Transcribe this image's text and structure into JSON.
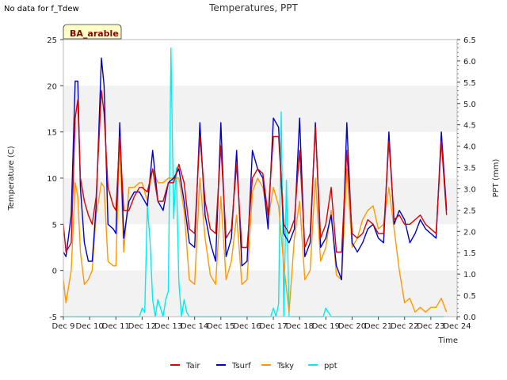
{
  "header": {
    "no_data_note": "No data for f_Tdew",
    "title": "Temperatures, PPT"
  },
  "chart_data": {
    "type": "line",
    "title": "Temperatures, PPT",
    "xlabel": "Time",
    "ylabel": "Temperature (C)",
    "y2label": "PPT (mm)",
    "site_label": "BA_arable",
    "ylim": [
      -5,
      25
    ],
    "y2lim": [
      0.0,
      6.5
    ],
    "xlim": [
      9,
      24
    ],
    "x_ticks": [
      "Dec 9",
      "Dec 10",
      "Dec 11",
      "Dec 12",
      "Dec 13",
      "Dec 14",
      "Dec 15",
      "Dec 16",
      "Dec 17",
      "Dec 18",
      "Dec 19",
      "Dec 20",
      "Dec 21",
      "Dec 22",
      "Dec 23",
      "Dec 24"
    ],
    "y_ticks": [
      -5,
      0,
      5,
      10,
      15,
      20,
      25
    ],
    "y2_ticks": [
      "0.0",
      "0.5",
      "1.0",
      "1.5",
      "2.0",
      "2.5",
      "3.0",
      "3.5",
      "4.0",
      "4.5",
      "5.0",
      "5.5",
      "6.0",
      "6.5"
    ],
    "grid_bands": true,
    "legend_position": "bottom",
    "series": [
      {
        "name": "Tair",
        "color": "#dd0000",
        "x": [
          9.0,
          9.1,
          9.3,
          9.45,
          9.55,
          9.65,
          9.8,
          9.95,
          10.1,
          10.25,
          10.45,
          10.55,
          10.7,
          10.9,
          11.0,
          11.15,
          11.3,
          11.5,
          11.7,
          11.9,
          12.0,
          12.2,
          12.4,
          12.6,
          12.8,
          13.0,
          13.2,
          13.4,
          13.6,
          13.8,
          14.0,
          14.2,
          14.4,
          14.6,
          14.8,
          15.0,
          15.2,
          15.4,
          15.6,
          15.8,
          16.0,
          16.2,
          16.4,
          16.6,
          16.8,
          17.0,
          17.2,
          17.4,
          17.6,
          17.8,
          18.0,
          18.2,
          18.4,
          18.6,
          18.8,
          19.0,
          19.2,
          19.4,
          19.6,
          19.8,
          20.0,
          20.2,
          20.4,
          20.6,
          20.8,
          21.0,
          21.2,
          21.4,
          21.6,
          21.8,
          22.0,
          22.2,
          22.4,
          22.6,
          22.8,
          23.0,
          23.2,
          23.4,
          23.6
        ],
        "values": [
          5.0,
          2.0,
          3.0,
          16.5,
          18.5,
          10.0,
          7.5,
          6.0,
          5.0,
          8.0,
          19.5,
          17.0,
          9.0,
          7.0,
          6.5,
          14.5,
          6.5,
          6.5,
          8.0,
          9.0,
          9.0,
          8.5,
          11.0,
          7.5,
          7.5,
          9.5,
          9.5,
          11.5,
          9.5,
          4.5,
          4.0,
          14.5,
          7.5,
          4.5,
          4.0,
          13.5,
          3.5,
          4.5,
          11.5,
          2.5,
          2.5,
          10.0,
          11.0,
          10.5,
          6.0,
          14.5,
          14.5,
          5.0,
          4.0,
          5.5,
          13.0,
          2.5,
          4.0,
          15.5,
          3.5,
          5.0,
          9.0,
          2.0,
          2.0,
          13.0,
          4.0,
          3.5,
          4.0,
          5.5,
          5.0,
          4.0,
          4.0,
          14.0,
          5.5,
          6.0,
          5.0,
          5.0,
          5.5,
          6.0,
          5.0,
          4.5,
          4.0,
          14.0,
          6.0
        ],
        "note": "x in days of December"
      },
      {
        "name": "Tsurf",
        "color": "#0000cc",
        "x": [
          9.0,
          9.1,
          9.3,
          9.45,
          9.55,
          9.65,
          9.8,
          9.95,
          10.1,
          10.25,
          10.45,
          10.55,
          10.7,
          10.9,
          11.0,
          11.15,
          11.3,
          11.5,
          11.7,
          11.9,
          12.0,
          12.2,
          12.4,
          12.6,
          12.8,
          13.0,
          13.2,
          13.4,
          13.6,
          13.8,
          14.0,
          14.2,
          14.4,
          14.6,
          14.8,
          15.0,
          15.2,
          15.4,
          15.6,
          15.8,
          16.0,
          16.2,
          16.4,
          16.6,
          16.8,
          17.0,
          17.2,
          17.4,
          17.6,
          17.8,
          18.0,
          18.2,
          18.4,
          18.6,
          18.8,
          19.0,
          19.2,
          19.4,
          19.6,
          19.8,
          20.0,
          20.2,
          20.4,
          20.6,
          20.8,
          21.0,
          21.2,
          21.4,
          21.6,
          21.8,
          22.0,
          22.2,
          22.4,
          22.6,
          22.8,
          23.0,
          23.2,
          23.4,
          23.6
        ],
        "values": [
          2.0,
          1.5,
          6.0,
          20.5,
          20.5,
          9.0,
          3.0,
          1.0,
          1.0,
          7.0,
          23.0,
          20.0,
          5.0,
          4.5,
          4.0,
          16.0,
          3.5,
          7.5,
          8.5,
          8.5,
          8.0,
          7.0,
          13.0,
          7.5,
          6.5,
          9.5,
          10.0,
          11.0,
          7.5,
          3.0,
          2.5,
          16.0,
          6.0,
          3.0,
          1.0,
          16.0,
          1.5,
          3.5,
          13.0,
          0.5,
          1.0,
          13.0,
          11.0,
          10.0,
          4.5,
          16.5,
          15.5,
          4.0,
          3.0,
          4.5,
          16.5,
          1.5,
          3.0,
          16.0,
          2.5,
          3.5,
          6.0,
          0.5,
          -1.0,
          16.0,
          3.0,
          2.0,
          3.0,
          4.5,
          5.0,
          3.5,
          3.0,
          15.0,
          5.0,
          6.5,
          5.5,
          3.0,
          4.0,
          5.5,
          4.5,
          4.0,
          3.5,
          15.0,
          6.5
        ]
      },
      {
        "name": "Tsky",
        "color": "#ff9900",
        "x": [
          9.0,
          9.1,
          9.3,
          9.45,
          9.55,
          9.65,
          9.8,
          9.95,
          10.1,
          10.25,
          10.45,
          10.55,
          10.7,
          10.9,
          11.0,
          11.15,
          11.3,
          11.5,
          11.7,
          11.9,
          12.0,
          12.2,
          12.4,
          12.6,
          12.8,
          13.0,
          13.2,
          13.4,
          13.6,
          13.8,
          14.0,
          14.2,
          14.4,
          14.6,
          14.8,
          15.0,
          15.2,
          15.4,
          15.6,
          15.8,
          16.0,
          16.2,
          16.4,
          16.6,
          16.8,
          17.0,
          17.2,
          17.4,
          17.6,
          17.8,
          18.0,
          18.2,
          18.4,
          18.6,
          18.8,
          19.0,
          19.2,
          19.4,
          19.6,
          19.8,
          20.0,
          20.2,
          20.4,
          20.6,
          20.8,
          21.0,
          21.2,
          21.4,
          21.6,
          21.8,
          22.0,
          22.2,
          22.4,
          22.6,
          22.8,
          23.0,
          23.2,
          23.4,
          23.6
        ],
        "values": [
          -1.0,
          -3.5,
          0.0,
          9.5,
          8.0,
          2.0,
          -1.5,
          -1.0,
          0.0,
          6.0,
          9.5,
          9.0,
          1.0,
          0.5,
          0.5,
          14.0,
          2.0,
          9.0,
          9.0,
          9.5,
          9.5,
          7.5,
          11.0,
          9.5,
          9.5,
          10.0,
          10.0,
          10.0,
          6.5,
          -1.0,
          -1.5,
          10.0,
          3.5,
          -0.5,
          -1.5,
          8.0,
          -1.0,
          1.0,
          6.0,
          -1.5,
          -1.0,
          8.5,
          10.0,
          9.0,
          5.5,
          9.0,
          7.0,
          0.5,
          -4.5,
          3.5,
          7.5,
          -1.0,
          0.0,
          10.0,
          1.0,
          2.5,
          6.5,
          -0.5,
          -1.0,
          11.0,
          2.5,
          3.5,
          5.5,
          6.5,
          7.0,
          4.5,
          5.0,
          9.0,
          4.5,
          0.0,
          -3.5,
          -3.0,
          -4.5,
          -4.0,
          -4.5,
          -4.0,
          -4.0,
          -3.0,
          -4.5
        ]
      },
      {
        "name": "ppt",
        "axis": "right",
        "color": "#00eeee",
        "x": [
          9.0,
          11.9,
          12.0,
          12.1,
          12.2,
          12.3,
          12.4,
          12.5,
          12.6,
          12.7,
          12.8,
          12.9,
          13.0,
          13.1,
          13.2,
          13.3,
          13.4,
          13.5,
          13.6,
          13.7,
          13.8,
          13.9,
          14.0,
          16.9,
          17.0,
          17.1,
          17.2,
          17.3,
          17.4,
          17.5,
          17.6,
          17.7,
          17.8,
          18.9,
          19.0,
          19.1,
          19.2,
          19.3,
          19.4,
          23.0,
          23.1,
          23.2,
          23.3,
          23.4,
          23.5
        ],
        "values": [
          0.0,
          0.0,
          0.2,
          0.1,
          2.6,
          1.8,
          0.4,
          0.0,
          0.4,
          0.2,
          0.0,
          0.4,
          0.6,
          6.3,
          2.3,
          3.5,
          0.8,
          0.0,
          0.4,
          0.1,
          0.0,
          0.0,
          0.0,
          0.0,
          0.2,
          0.0,
          0.3,
          4.8,
          0.0,
          3.2,
          0.0,
          0.0,
          0.0,
          0.0,
          0.2,
          0.1,
          0.0,
          0.0,
          0.0,
          0.0,
          0.0,
          0.0,
          0.0,
          0.0,
          0.0
        ]
      }
    ]
  }
}
